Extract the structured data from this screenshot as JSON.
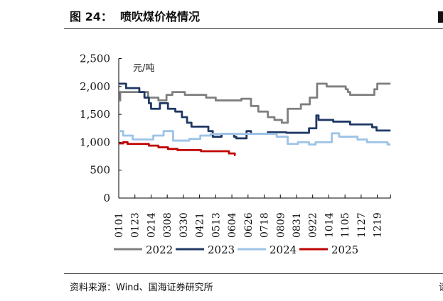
{
  "header": {
    "title": "图 24：  喷吹煤价格情况"
  },
  "footer": {
    "source": "资料来源：Wind、国海证券研究所",
    "cut_text": "请"
  },
  "chart_data": {
    "type": "line",
    "title": "喷吹煤价格情况",
    "ylabel": "元/吨",
    "ylim": [
      0,
      2500
    ],
    "yticks": [
      "0",
      "500",
      "1,000",
      "1,500",
      "2,000",
      "2,500"
    ],
    "xlim": [
      0,
      370
    ],
    "xtick_labels": [
      "0101",
      "0123",
      "0214",
      "0308",
      "0330",
      "0421",
      "0513",
      "0604",
      "0626",
      "0718",
      "0809",
      "0831",
      "0922",
      "1014",
      "1105",
      "1127",
      "1219"
    ],
    "xtick_days": [
      0,
      22,
      44,
      66,
      88,
      110,
      132,
      154,
      176,
      198,
      220,
      242,
      264,
      286,
      308,
      330,
      352
    ],
    "legend_position": "bottom",
    "series": [
      {
        "name": "2022",
        "color": "#7f7f7f",
        "points": [
          [
            0,
            1750
          ],
          [
            2,
            1900
          ],
          [
            40,
            1800
          ],
          [
            54,
            1750
          ],
          [
            65,
            1850
          ],
          [
            73,
            1900
          ],
          [
            90,
            1850
          ],
          [
            119,
            1800
          ],
          [
            132,
            1750
          ],
          [
            167,
            1780
          ],
          [
            180,
            1650
          ],
          [
            190,
            1550
          ],
          [
            203,
            1450
          ],
          [
            212,
            1400
          ],
          [
            222,
            1350
          ],
          [
            230,
            1600
          ],
          [
            248,
            1680
          ],
          [
            260,
            1800
          ],
          [
            270,
            2050
          ],
          [
            283,
            2000
          ],
          [
            309,
            1950
          ],
          [
            312,
            1900
          ],
          [
            315,
            1850
          ],
          [
            348,
            1950
          ],
          [
            352,
            2050
          ],
          [
            370,
            2050
          ]
        ]
      },
      {
        "name": "2023",
        "color": "#1f3864",
        "points": [
          [
            0,
            2050
          ],
          [
            10,
            1970
          ],
          [
            28,
            1900
          ],
          [
            35,
            1800
          ],
          [
            41,
            1700
          ],
          [
            44,
            1600
          ],
          [
            56,
            1700
          ],
          [
            67,
            1600
          ],
          [
            77,
            1550
          ],
          [
            86,
            1450
          ],
          [
            93,
            1350
          ],
          [
            99,
            1280
          ],
          [
            122,
            1200
          ],
          [
            128,
            1100
          ],
          [
            140,
            1150
          ],
          [
            157,
            1100
          ],
          [
            160,
            1070
          ],
          [
            174,
            1200
          ],
          [
            180,
            1150
          ],
          [
            203,
            1180
          ],
          [
            228,
            1170
          ],
          [
            259,
            1250
          ],
          [
            269,
            1480
          ],
          [
            272,
            1400
          ],
          [
            292,
            1370
          ],
          [
            315,
            1320
          ],
          [
            345,
            1270
          ],
          [
            351,
            1210
          ],
          [
            370,
            1210
          ]
        ]
      },
      {
        "name": "2024",
        "color": "#9dc3e6",
        "points": [
          [
            0,
            1200
          ],
          [
            6,
            1120
          ],
          [
            19,
            1050
          ],
          [
            47,
            1120
          ],
          [
            61,
            1200
          ],
          [
            74,
            1030
          ],
          [
            96,
            1060
          ],
          [
            111,
            1120
          ],
          [
            125,
            1150
          ],
          [
            215,
            1100
          ],
          [
            230,
            970
          ],
          [
            244,
            1000
          ],
          [
            259,
            960
          ],
          [
            268,
            1000
          ],
          [
            290,
            1160
          ],
          [
            300,
            1100
          ],
          [
            325,
            1050
          ],
          [
            338,
            1000
          ],
          [
            366,
            960
          ],
          [
            370,
            960
          ]
        ]
      },
      {
        "name": "2025",
        "color": "#c00000",
        "points": [
          [
            0,
            980
          ],
          [
            6,
            1000
          ],
          [
            12,
            970
          ],
          [
            41,
            940
          ],
          [
            54,
            910
          ],
          [
            67,
            880
          ],
          [
            80,
            860
          ],
          [
            112,
            840
          ],
          [
            150,
            800
          ],
          [
            158,
            770
          ],
          [
            159,
            770
          ]
        ]
      }
    ]
  }
}
